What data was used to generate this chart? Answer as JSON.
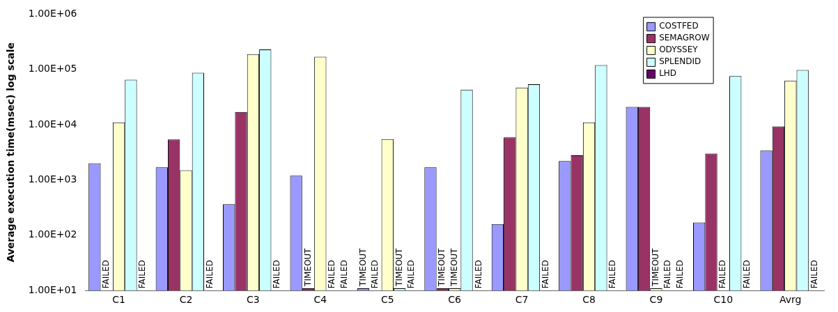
{
  "chart_data": {
    "type": "bar",
    "ylabel": "Average execution time(msec) log scale",
    "categories": [
      "C1",
      "C2",
      "C3",
      "C4",
      "C5",
      "C6",
      "C7",
      "C8",
      "C9",
      "C10",
      "Avrg"
    ],
    "series": [
      {
        "name": "COSTFED",
        "color": "#9999ff",
        "values": [
          2000,
          1700,
          365,
          1200,
          11,
          1700,
          160,
          2200,
          21000,
          170,
          3400
        ],
        "value_labels": [
          null,
          null,
          null,
          null,
          "TIMEOUT",
          null,
          null,
          null,
          null,
          null,
          null
        ]
      },
      {
        "name": "SEMAGROW",
        "color": "#993366",
        "values": [
          null,
          5400,
          17000,
          11,
          null,
          11,
          5900,
          2800,
          21000,
          3000,
          9300
        ],
        "value_labels": [
          "FAILED",
          null,
          null,
          "TIMEOUT",
          "FAILED",
          "TIMEOUT",
          null,
          null,
          null,
          null,
          null
        ]
      },
      {
        "name": "ODYSSEY",
        "color": "#ffffcc",
        "values": [
          11000,
          1500,
          190000,
          170000,
          5500,
          11,
          47000,
          11000,
          11,
          null,
          63000
        ],
        "value_labels": [
          null,
          null,
          null,
          null,
          null,
          "TIMEOUT",
          null,
          null,
          "TIMEOUT",
          "FAILED",
          null
        ]
      },
      {
        "name": "SPLENDID",
        "color": "#ccffff",
        "values": [
          65000,
          87000,
          230000,
          null,
          11,
          43000,
          54000,
          120000,
          null,
          76000,
          98000
        ],
        "value_labels": [
          null,
          null,
          null,
          "FAILED",
          "TIMEOUT",
          null,
          null,
          null,
          "FAILED",
          null,
          null
        ]
      },
      {
        "name": "LHD",
        "color": "#660066",
        "values": [
          null,
          null,
          null,
          null,
          null,
          null,
          null,
          null,
          null,
          null,
          null
        ],
        "value_labels": [
          "FAILED",
          "FAILED",
          "FAILED",
          "FAILED",
          "FAILED",
          "FAILED",
          "FAILED",
          "FAILED",
          "FAILED",
          "FAILED",
          "FAILED"
        ]
      }
    ],
    "log": true,
    "ylim": [
      10,
      1000000
    ],
    "yticks": [
      {
        "value": 10,
        "label": "1.00E+01"
      },
      {
        "value": 100,
        "label": "1.00E+02"
      },
      {
        "value": 1000,
        "label": "1.00E+03"
      },
      {
        "value": 10000,
        "label": "1.00E+04"
      },
      {
        "value": 100000,
        "label": "1.00E+05"
      },
      {
        "value": 1000000,
        "label": "1.00E+06"
      }
    ],
    "grid": false,
    "legend": "top right"
  }
}
